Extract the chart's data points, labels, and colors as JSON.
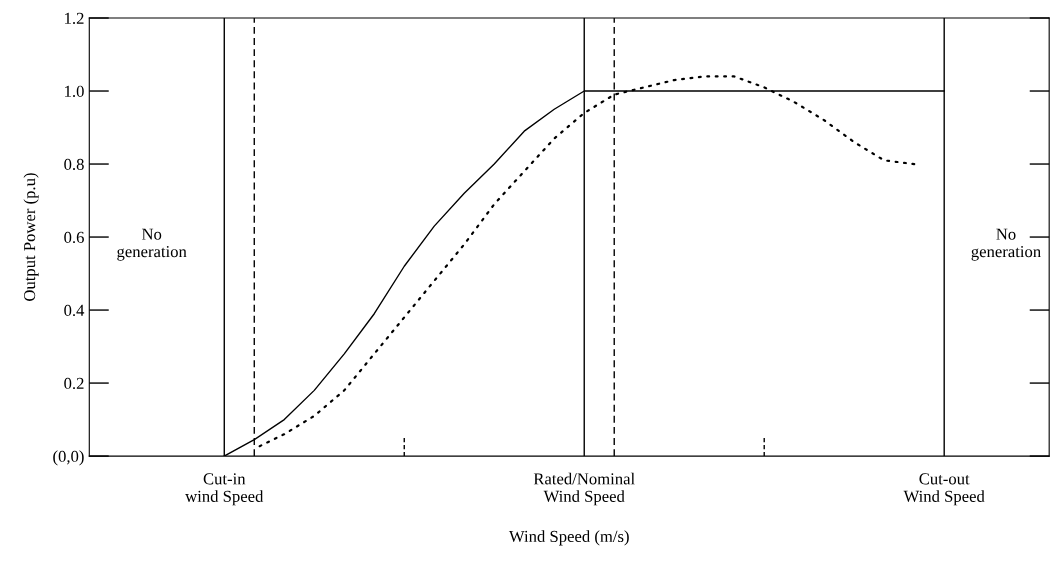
{
  "chart_data": {
    "type": "line",
    "xlabel": "Wind Speed (m/s)",
    "ylabel": "Output Power (p.u)",
    "categories": [
      null,
      null,
      null,
      null,
      "Cut-in\nwind Speed",
      null,
      null,
      null,
      null,
      null,
      null,
      null,
      null,
      null,
      null,
      null,
      "Rated/Nominal\nWind Speed",
      null,
      null,
      null,
      null,
      null,
      null,
      null,
      null,
      null,
      null,
      null,
      "Cut-out\nWind Speed",
      null,
      null,
      null
    ],
    "ylim": [
      0,
      1.2
    ],
    "yticks": [
      {
        "value": 0,
        "label": "(0,0)"
      },
      0.2,
      0.4,
      0.6,
      0.8,
      {
        "value": 1,
        "label": "1.0"
      },
      1.2
    ],
    "series": [
      {
        "color": "#000000",
        "line_style": "solid",
        "values": [
          null,
          null,
          null,
          null,
          0,
          0.045,
          0.1,
          0.18,
          0.28,
          0.39,
          0.52,
          0.63,
          0.72,
          0.8,
          0.89,
          0.95,
          1.0,
          1.0,
          1.0,
          1.0,
          1.0,
          1.0,
          1.0,
          1.0,
          1.0,
          1.0,
          1.0,
          1.0,
          1.0,
          null,
          null,
          null
        ]
      },
      {
        "color": "#000000",
        "line_style": "dotted",
        "values": [
          null,
          null,
          null,
          null,
          null,
          0.02,
          0.06,
          0.11,
          0.18,
          0.28,
          0.38,
          0.48,
          0.58,
          0.69,
          0.78,
          0.87,
          0.94,
          0.99,
          1.01,
          1.03,
          1.04,
          1.04,
          1.01,
          0.97,
          0.92,
          0.86,
          0.81,
          0.8,
          null,
          null,
          null,
          null
        ]
      }
    ],
    "annotations": [
      "No\ngeneration",
      "No\ngeneration"
    ],
    "grid": "x",
    "legend": false
  }
}
